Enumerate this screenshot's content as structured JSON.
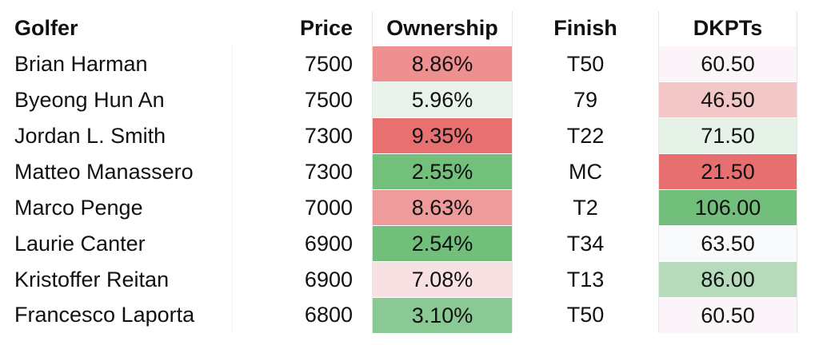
{
  "table": {
    "headers": {
      "golfer": "Golfer",
      "price": "Price",
      "ownership": "Ownership",
      "finish": "Finish",
      "dkpts": "DKPTs"
    },
    "rows": [
      {
        "golfer": "Brian Harman",
        "price": "7500",
        "ownership": "8.86%",
        "finish": "T50",
        "dkpts": "60.50",
        "ownership_color": "#ef8f8f",
        "dkpts_color": "#fbf4f8"
      },
      {
        "golfer": "Byeong Hun An",
        "price": "7500",
        "ownership": "5.96%",
        "finish": "79",
        "dkpts": "46.50",
        "ownership_color": "#e9f3ec",
        "dkpts_color": "#f3c6c8"
      },
      {
        "golfer": "Jordan L. Smith",
        "price": "7300",
        "ownership": "9.35%",
        "finish": "T22",
        "dkpts": "71.50",
        "ownership_color": "#e87070",
        "dkpts_color": "#e6f1e8"
      },
      {
        "golfer": "Matteo Manassero",
        "price": "7300",
        "ownership": "2.55%",
        "finish": "MC",
        "dkpts": "21.50",
        "ownership_color": "#73bf7c",
        "dkpts_color": "#e86f6f"
      },
      {
        "golfer": "Marco Penge",
        "price": "7000",
        "ownership": "8.63%",
        "finish": "T2",
        "dkpts": "106.00",
        "ownership_color": "#ef9a9b",
        "dkpts_color": "#72be7b"
      },
      {
        "golfer": "Laurie Canter",
        "price": "6900",
        "ownership": "2.54%",
        "finish": "T34",
        "dkpts": "63.50",
        "ownership_color": "#72be7b",
        "dkpts_color": "#f8fafb"
      },
      {
        "golfer": "Kristoffer Reitan",
        "price": "6900",
        "ownership": "7.08%",
        "finish": "T13",
        "dkpts": "86.00",
        "ownership_color": "#f8e1e3",
        "dkpts_color": "#b5dbbb"
      },
      {
        "golfer": "Francesco Laporta",
        "price": "6800",
        "ownership": "3.10%",
        "finish": "T50",
        "dkpts": "60.50",
        "ownership_color": "#8ac993",
        "dkpts_color": "#fbf4f8"
      }
    ]
  }
}
